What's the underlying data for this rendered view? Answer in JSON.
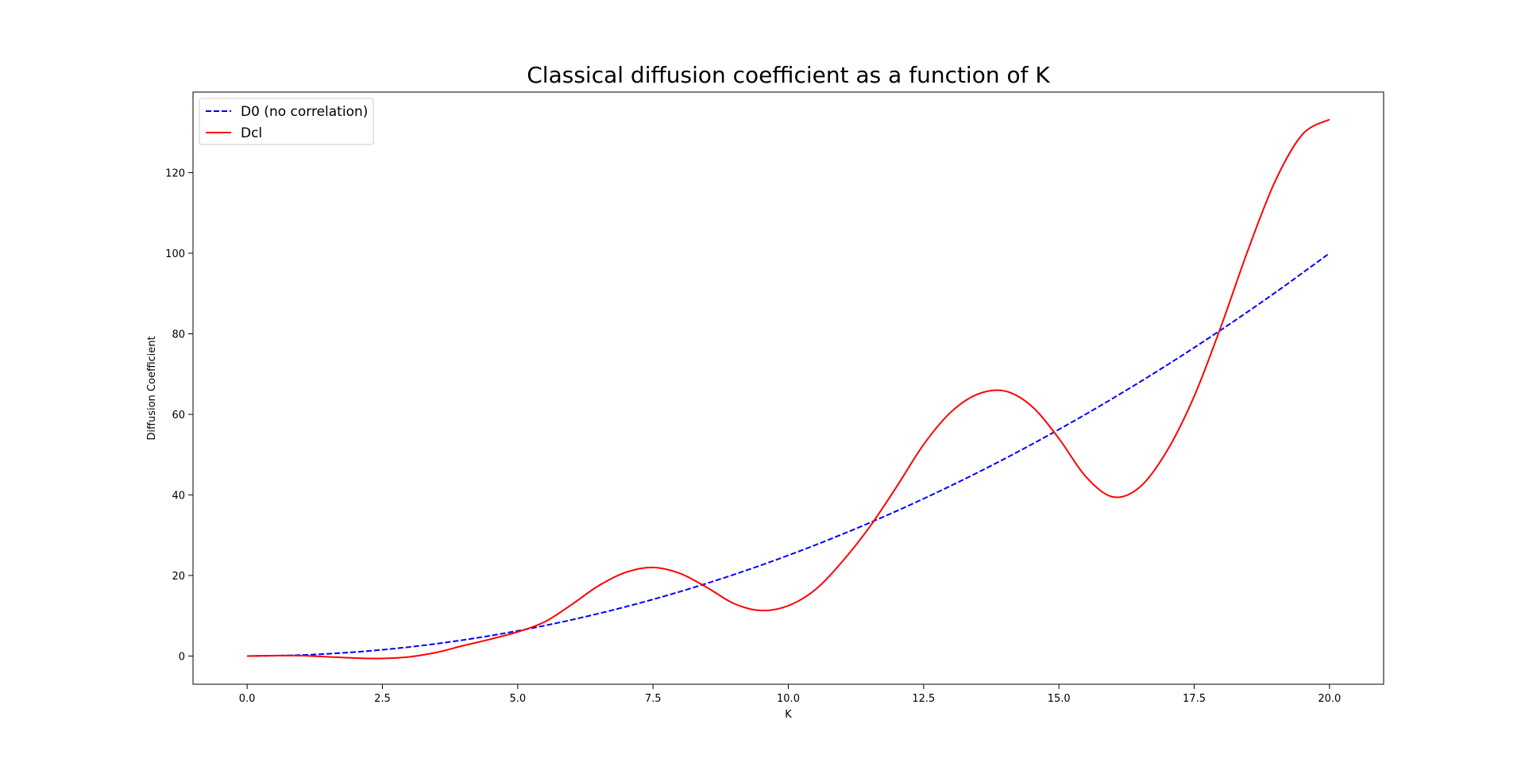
{
  "chart_data": {
    "type": "line",
    "title": "Classical diffusion coefficient as a function of K",
    "xlabel": "K",
    "ylabel": "Diffusion Coefficient",
    "xlim": [
      -1.0,
      21.0
    ],
    "ylim": [
      -7,
      140
    ],
    "xticks": [
      0.0,
      2.5,
      5.0,
      7.5,
      10.0,
      12.5,
      15.0,
      17.5,
      20.0
    ],
    "xtick_labels": [
      "0.0",
      "2.5",
      "5.0",
      "7.5",
      "10.0",
      "12.5",
      "15.0",
      "17.5",
      "20.0"
    ],
    "yticks": [
      0,
      20,
      40,
      60,
      80,
      100,
      120
    ],
    "ytick_labels": [
      "0",
      "20",
      "40",
      "60",
      "80",
      "100",
      "120"
    ],
    "grid": false,
    "legend_position": "top-left",
    "series": [
      {
        "name": "D0 (no correlation)",
        "color": "#0000ff",
        "style": "dashed",
        "x": [
          0,
          1,
          2,
          3,
          4,
          5,
          6,
          7,
          8,
          9,
          10,
          11,
          12,
          13,
          14,
          15,
          16,
          17,
          18,
          19,
          20
        ],
        "y": [
          0,
          0.25,
          1,
          2.25,
          4,
          6.25,
          9,
          12.25,
          16,
          20.25,
          25,
          30.25,
          36,
          42.25,
          49,
          56.25,
          64,
          72.25,
          81,
          90.25,
          100
        ]
      },
      {
        "name": "Dcl",
        "color": "#ff0000",
        "style": "solid",
        "x": [
          0.0,
          0.5,
          1.0,
          1.5,
          2.0,
          2.5,
          3.0,
          3.5,
          4.0,
          4.5,
          5.0,
          5.5,
          6.0,
          6.5,
          7.0,
          7.5,
          8.0,
          8.5,
          9.0,
          9.5,
          10.0,
          10.5,
          11.0,
          11.5,
          12.0,
          12.5,
          13.0,
          13.5,
          14.0,
          14.5,
          15.0,
          15.5,
          16.0,
          16.5,
          17.0,
          17.5,
          18.0,
          18.5,
          19.0,
          19.5,
          20.0
        ],
        "y": [
          0.0,
          0.1,
          0.1,
          -0.2,
          -0.5,
          -0.6,
          -0.2,
          0.9,
          2.6,
          4.2,
          6.0,
          8.5,
          12.8,
          17.5,
          20.8,
          22.0,
          20.5,
          17.0,
          13.0,
          11.3,
          12.5,
          16.5,
          23.5,
          32.0,
          42.0,
          52.5,
          60.5,
          65.0,
          65.8,
          62.0,
          54.0,
          44.5,
          39.5,
          42.0,
          51.0,
          64.5,
          82.0,
          101.0,
          118.0,
          129.5,
          133.2
        ]
      }
    ]
  }
}
